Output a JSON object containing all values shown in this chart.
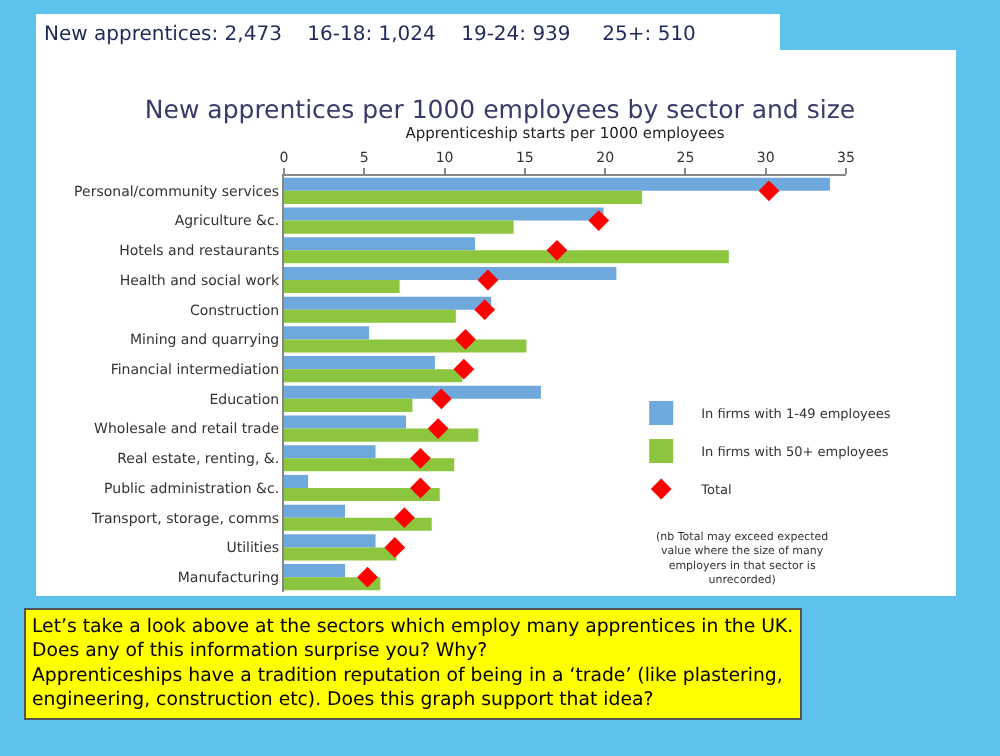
{
  "chart_data": {
    "type": "bar",
    "orientation": "horizontal",
    "title": "New apprentices per 1000 employees by sector and size",
    "xlabel": "Apprenticeship starts per 1000 employees",
    "categories": [
      "Personal/community services",
      "Agriculture &c.",
      "Hotels and restaurants",
      "Health and social work",
      "Construction",
      "Mining and quarrying",
      "Financial intermediation",
      "Education",
      "Wholesale and retail trade",
      "Real estate, renting, &.",
      "Public administration &c.",
      "Transport, storage, comms",
      "Utilities",
      "Manufacturing"
    ],
    "series": [
      {
        "name": "In firms with 1-49 employees",
        "color": "#6fa8dc",
        "values": [
          34.0,
          19.9,
          11.9,
          20.7,
          12.9,
          5.3,
          9.4,
          16.0,
          7.6,
          5.7,
          1.5,
          3.8,
          5.7,
          3.8
        ]
      },
      {
        "name": "In firms with 50+ employees",
        "color": "#8cc63f",
        "values": [
          22.3,
          14.3,
          27.7,
          7.2,
          10.7,
          15.1,
          11.1,
          8.0,
          12.1,
          10.6,
          9.7,
          9.2,
          7.0,
          6.0
        ]
      },
      {
        "name": "Total",
        "type": "scatter",
        "marker": "diamond",
        "color": "#ff0000",
        "values": [
          30.2,
          19.6,
          17.0,
          12.7,
          12.5,
          11.3,
          11.2,
          9.8,
          9.6,
          8.5,
          8.5,
          7.5,
          6.9,
          5.2
        ]
      }
    ],
    "xlim": [
      0,
      35
    ],
    "xticks": [
      0,
      5,
      10,
      15,
      20,
      25,
      30,
      35
    ],
    "legend": "right",
    "annotations": [
      "New apprentices: 2,473    16-18: 1,024    19-24: 939     25+: 510",
      "(nb Total may exceed expected value where the size of many employers in that sector is unrecorded)",
      "Let’s take a look above at the sectors which employ many apprentices in the UK.\nDoes any of this information surprise you? Why?\nApprenticeships have a tradition reputation of being in a ‘trade’ (like plastering,\nengineering, construction etc). Does this graph support that idea?"
    ]
  }
}
